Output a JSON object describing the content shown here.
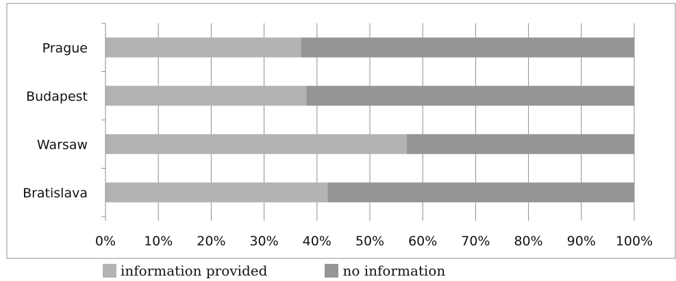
{
  "chart_data": {
    "type": "bar",
    "orientation": "horizontal",
    "stacked": true,
    "categories": [
      "Prague",
      "Budapest",
      "Warsaw",
      "Bratislava"
    ],
    "series": [
      {
        "name": "information provided",
        "values": [
          37,
          38,
          57,
          42
        ],
        "color": "#b3b3b3"
      },
      {
        "name": "no information",
        "values": [
          63,
          62,
          43,
          58
        ],
        "color": "#959595"
      }
    ],
    "x_ticks": [
      "0%",
      "10%",
      "20%",
      "30%",
      "40%",
      "50%",
      "60%",
      "70%",
      "80%",
      "90%",
      "100%"
    ],
    "xlim": [
      0,
      100
    ],
    "grid": "vertical",
    "legend_position": "bottom",
    "title": "",
    "xlabel": "",
    "ylabel": ""
  },
  "colors": {
    "frame": "#8c8c8c",
    "gridline": "#8c8c8c"
  }
}
